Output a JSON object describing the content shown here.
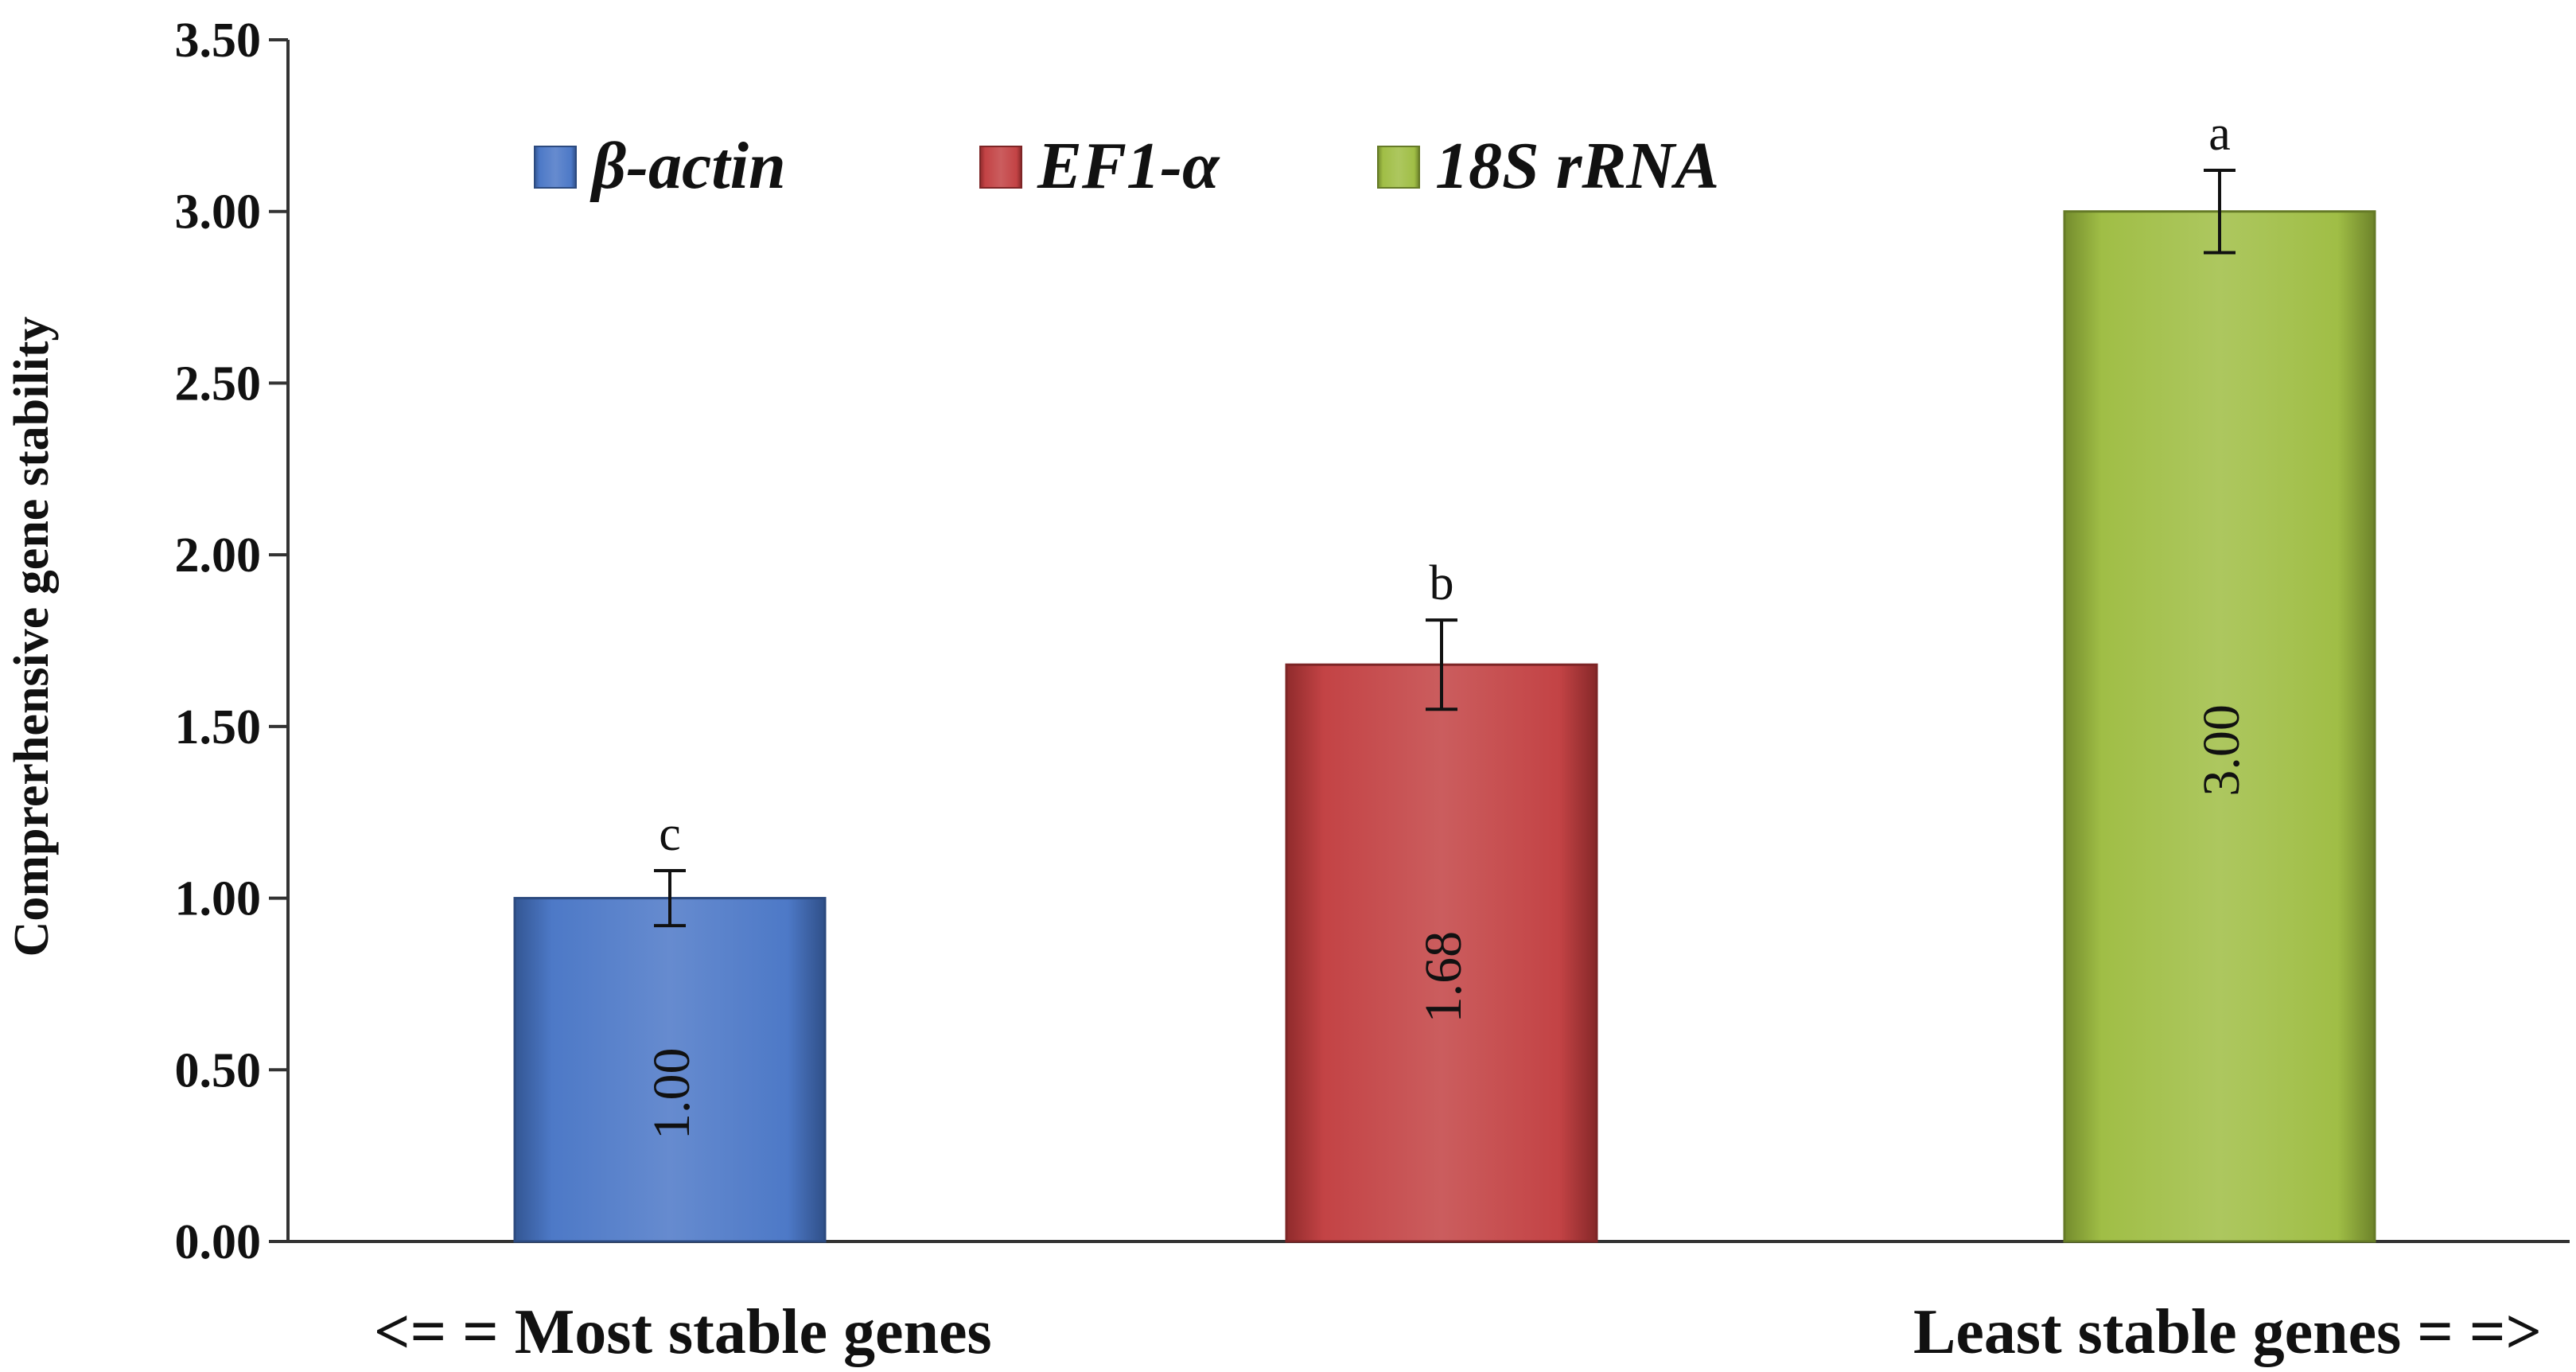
{
  "chart_data": {
    "type": "bar",
    "title": "",
    "xlabel": "",
    "ylabel": "Comprerhensive  gene stability",
    "ylim": [
      0,
      3.5
    ],
    "ytick_step": 0.5,
    "ytick_labels": [
      "0.00",
      "0.50",
      "1.00",
      "1.50",
      "2.00",
      "2.50",
      "3.00",
      "3.50"
    ],
    "grid": false,
    "legend": {
      "placement": "top-center",
      "italic": true
    },
    "series": [
      {
        "name": "β-actin",
        "value": 1.0,
        "value_label": "1.00",
        "error": 0.08,
        "letter": "c",
        "color": "#4472c4"
      },
      {
        "name": "EF1-α",
        "value": 1.68,
        "value_label": "1.68",
        "error": 0.13,
        "letter": "b",
        "color": "#c0393b"
      },
      {
        "name": "18S rRNA",
        "value": 3.0,
        "value_label": "3.00",
        "error": 0.12,
        "letter": "a",
        "color": "#9bbb3c"
      }
    ],
    "annotations": {
      "left": "<= = Most stable genes",
      "right": "Least stable genes = =>"
    }
  }
}
